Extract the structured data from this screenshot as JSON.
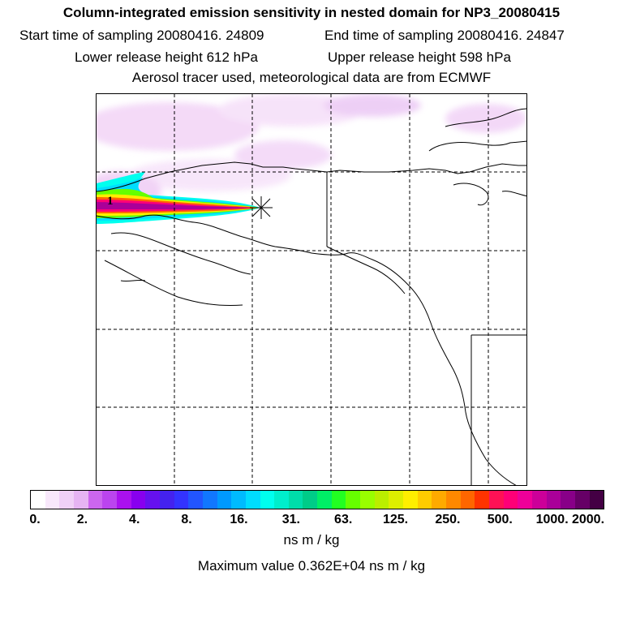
{
  "header": {
    "title": "Column-integrated emission sensitivity in nested domain for NP3_20080415",
    "start_label": "Start time of sampling",
    "start_value": "20080416. 24809",
    "end_label": "End time of sampling",
    "end_value": "20080416. 24847",
    "lower_label": "Lower release height",
    "lower_value": "612 hPa",
    "upper_label": "Upper release height",
    "upper_value": "598 hPa",
    "tracer_line": "Aerosol tracer used, meteorological data are from ECMWF"
  },
  "map": {
    "release_marker_label": "1",
    "coastline_color": "#000000",
    "grid_style": "dashed"
  },
  "colorbar": {
    "tick_labels": [
      "0.",
      "2.",
      "4.",
      "8.",
      "16.",
      "31.",
      "63.",
      "125.",
      "250.",
      "500.",
      "1000.",
      "2000."
    ],
    "colors": [
      "#ffffff",
      "#f8e8fb",
      "#f0d0f7",
      "#e6b4f3",
      "#cc66ee",
      "#bb44ee",
      "#aa11ee",
      "#8800ee",
      "#6611ee",
      "#4422ee",
      "#3333ff",
      "#2255ff",
      "#1177ff",
      "#0099ff",
      "#00bbff",
      "#00ddff",
      "#00ffee",
      "#00eecc",
      "#00ddaa",
      "#00cc88",
      "#00ee66",
      "#22ff22",
      "#66ff00",
      "#99ff00",
      "#bbee00",
      "#ddee00",
      "#ffee00",
      "#ffcc00",
      "#ffaa00",
      "#ff8800",
      "#ff6600",
      "#ff3300",
      "#ff1155",
      "#ff0077",
      "#ee0099",
      "#cc0099",
      "#aa0099",
      "#880088",
      "#660066",
      "#440044"
    ],
    "unit": "ns m / kg",
    "max_value_line": "Maximum value  0.362E+04 ns m / kg"
  }
}
